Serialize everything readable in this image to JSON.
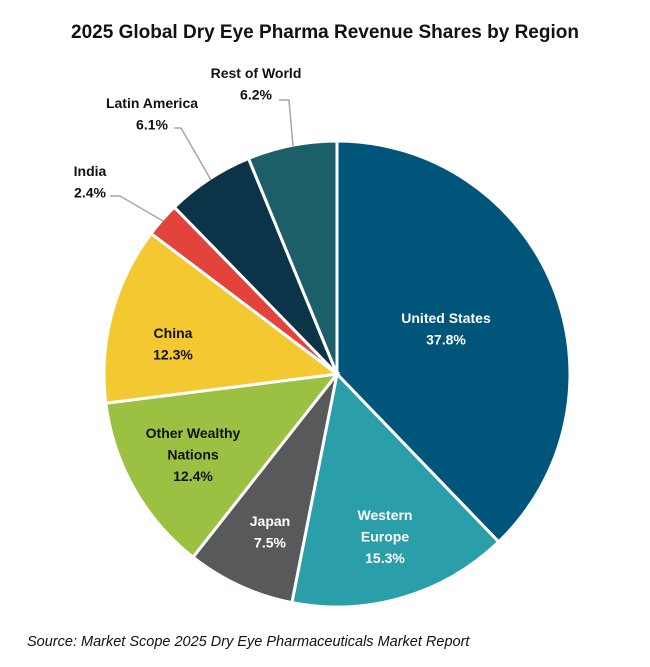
{
  "chart_data": {
    "type": "pie",
    "title": "2025 Global Dry Eye Pharma Revenue Shares by Region",
    "start_angle": "12 o'clock, clockwise",
    "slices": [
      {
        "label": "United States",
        "value": 37.8,
        "display": "37.8%",
        "color": "#00557a"
      },
      {
        "label": "Western Europe",
        "value": 15.3,
        "display": "15.3%",
        "color": "#2a9fa9"
      },
      {
        "label": "Japan",
        "value": 7.5,
        "display": "7.5%",
        "color": "#58595b"
      },
      {
        "label": "Other Wealthy Nations",
        "value": 12.4,
        "display": "12.4%",
        "color": "#9cc142"
      },
      {
        "label": "China",
        "value": 12.3,
        "display": "12.3%",
        "color": "#f3c830"
      },
      {
        "label": "India",
        "value": 2.4,
        "display": "2.4%",
        "color": "#e2433b"
      },
      {
        "label": "Latin America",
        "value": 6.1,
        "display": "6.1%",
        "color": "#0c3448"
      },
      {
        "label": "Rest of World",
        "value": 6.2,
        "display": "6.2%",
        "color": "#1d5f69"
      }
    ],
    "source": "Source: Market Scope 2025 Dry Eye Pharmaceuticals Market Report"
  }
}
